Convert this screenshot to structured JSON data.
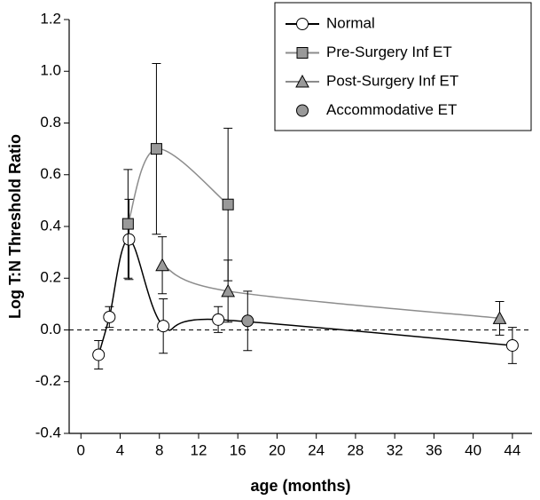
{
  "chart_data": {
    "type": "line",
    "xlabel": "age (months)",
    "ylabel": "Log T:N Threshold Ratio",
    "xlim": [
      -1.2,
      46
    ],
    "xticks": [
      0,
      4,
      8,
      12,
      16,
      20,
      24,
      28,
      32,
      36,
      40,
      44
    ],
    "ylim": [
      -0.4,
      1.2
    ],
    "yticks": [
      -0.4,
      -0.2,
      {
        "value": 0,
        "label": "0.0"
      },
      0.2,
      0.4,
      0.6,
      0.8,
      {
        "value": 1,
        "label": "1.0"
      },
      1.2
    ],
    "hline": 0,
    "series": [
      {
        "name": "Normal",
        "color": "#000000",
        "marker": "circle",
        "marker_fill": "#ffffff",
        "line": true,
        "x": [
          1.8,
          2.9,
          4.9,
          8.4,
          14,
          44
        ],
        "values": [
          -0.096,
          0.05,
          0.35,
          0.015,
          0.04,
          -0.06
        ],
        "errors": [
          0.055,
          0.04,
          0.155,
          0.105,
          0.05,
          0.07
        ]
      },
      {
        "name": "Pre-Surgery Inf ET",
        "color": "#8c8c8c",
        "marker": "square",
        "marker_fill": "#999999",
        "line": true,
        "x": [
          4.8,
          7.7,
          15
        ],
        "values": [
          0.41,
          0.7,
          0.485
        ],
        "errors": [
          0.21,
          0.33,
          0.295
        ]
      },
      {
        "name": "Post-Surgery Inf ET",
        "color": "#8c8c8c",
        "marker": "triangle",
        "marker_fill": "#999999",
        "line": true,
        "x": [
          8.3,
          15,
          42.7
        ],
        "values": [
          0.25,
          0.15,
          0.045
        ],
        "errors": [
          0.11,
          0.12,
          0.065
        ]
      },
      {
        "name": "Accommodative ET",
        "color": "#555555",
        "marker": "circle",
        "marker_fill": "#999999",
        "line": false,
        "x": [
          17
        ],
        "values": [
          0.035
        ],
        "errors": [
          0.115
        ]
      }
    ]
  }
}
